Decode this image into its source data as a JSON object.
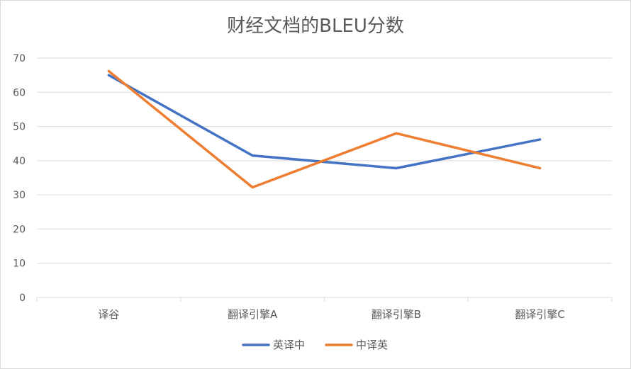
{
  "chart_data": {
    "type": "line",
    "title": "财经文档的BLEU分数",
    "xlabel": "",
    "ylabel": "",
    "categories": [
      "译谷",
      "翻译引擎A",
      "翻译引擎B",
      "翻译引擎C"
    ],
    "series": [
      {
        "name": "英译中",
        "color": "#4472c4",
        "values": [
          65,
          41.5,
          37.8,
          46.2
        ]
      },
      {
        "name": "中译英",
        "color": "#ed7d31",
        "values": [
          66.2,
          32.2,
          48,
          37.8
        ]
      }
    ],
    "ylim": [
      0,
      70
    ],
    "yticks": [
      0,
      10,
      20,
      30,
      40,
      50,
      60,
      70
    ],
    "grid": true,
    "legend_position": "bottom"
  }
}
